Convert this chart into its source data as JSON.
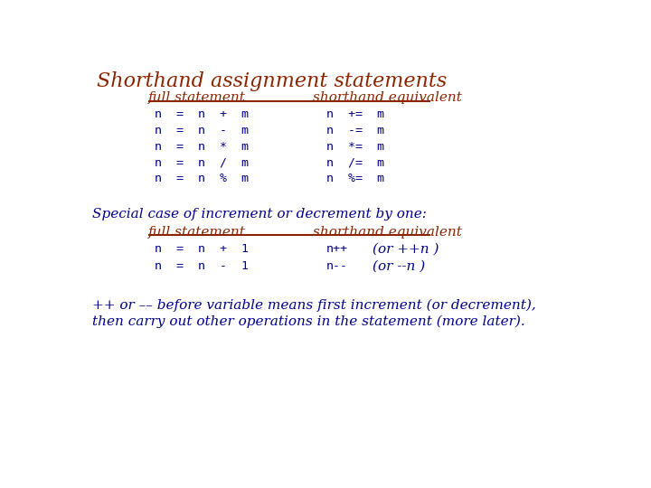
{
  "title": "Shorthand assignment statements",
  "title_color": "#8B2500",
  "title_fontsize": 16,
  "bg_color": "#FFFFFF",
  "header_color": "#8B2500",
  "code_color": "#00008B",
  "body_color": "#00008B",
  "mono_fontsize": 9.5,
  "body_fontsize": 11,
  "header_fontsize": 11,
  "full_stmt_label": "full statement",
  "shorthand_label": "shorthand equivalent",
  "full_rows": [
    "n  =  n  +  m",
    "n  =  n  -  m",
    "n  =  n  *  m",
    "n  =  n  /  m",
    "n  =  n  %  m"
  ],
  "short_rows": [
    "n  +=  m",
    "n  -=  m",
    "n  *=  m",
    "n  /=  m",
    "n  %=  m"
  ],
  "special_label": "Special case of increment or decrement by one:",
  "full_rows2": [
    "n  =  n  +  1",
    "n  =  n  -  1"
  ],
  "short_rows2": [
    "n++",
    "n--"
  ],
  "or_rows2": [
    "(or ++n )",
    "(or --n )"
  ],
  "footer1": "++ or –– before variable means first increment (or decrement),",
  "footer2": "then carry out other operations in the statement (more later)."
}
